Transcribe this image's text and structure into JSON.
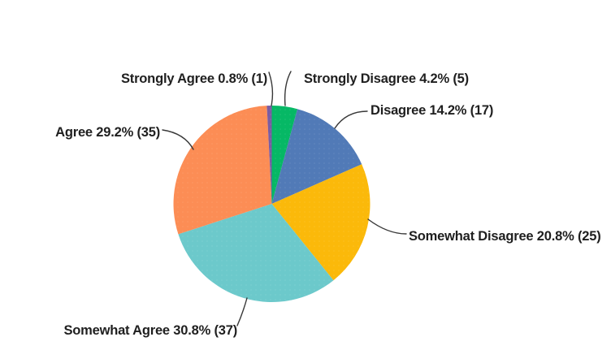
{
  "chart_data": {
    "type": "pie",
    "title": "",
    "direction": "clockwise",
    "start_angle_deg": 0,
    "legend_position": "none",
    "background_color": "#ffffff",
    "label_format": "{label} {percent}% ({count})",
    "slices": [
      {
        "key": "strongly-disagree",
        "label": "Strongly Disagree",
        "percent": 4.2,
        "count": 5,
        "color": "#06B865"
      },
      {
        "key": "disagree",
        "label": "Disagree",
        "percent": 14.2,
        "count": 17,
        "color": "#517AB7"
      },
      {
        "key": "somewhat-disagree",
        "label": "Somewhat Disagree",
        "percent": 20.8,
        "count": 25,
        "color": "#FBB90A"
      },
      {
        "key": "somewhat-agree",
        "label": "Somewhat Agree",
        "percent": 30.8,
        "count": 37,
        "color": "#6CC9CB"
      },
      {
        "key": "agree",
        "label": "Agree",
        "percent": 29.2,
        "count": 35,
        "color": "#FC8D55"
      },
      {
        "key": "strongly-agree",
        "label": "Strongly Agree",
        "percent": 0.8,
        "count": 1,
        "color": "#7A5CA3"
      }
    ]
  },
  "annotations": {
    "strongly_agree": "Strongly Agree 0.8% (1)",
    "strongly_disagree": "Strongly Disagree 4.2% (5)",
    "disagree": "Disagree 14.2% (17)",
    "somewhat_disagree": "Somewhat Disagree 20.8% (25)",
    "somewhat_agree": "Somewhat Agree 30.8% (37)",
    "agree": "Agree 29.2% (35)"
  },
  "colors": {
    "label_text": "#1f1f1f",
    "leader_line": "#383838"
  }
}
